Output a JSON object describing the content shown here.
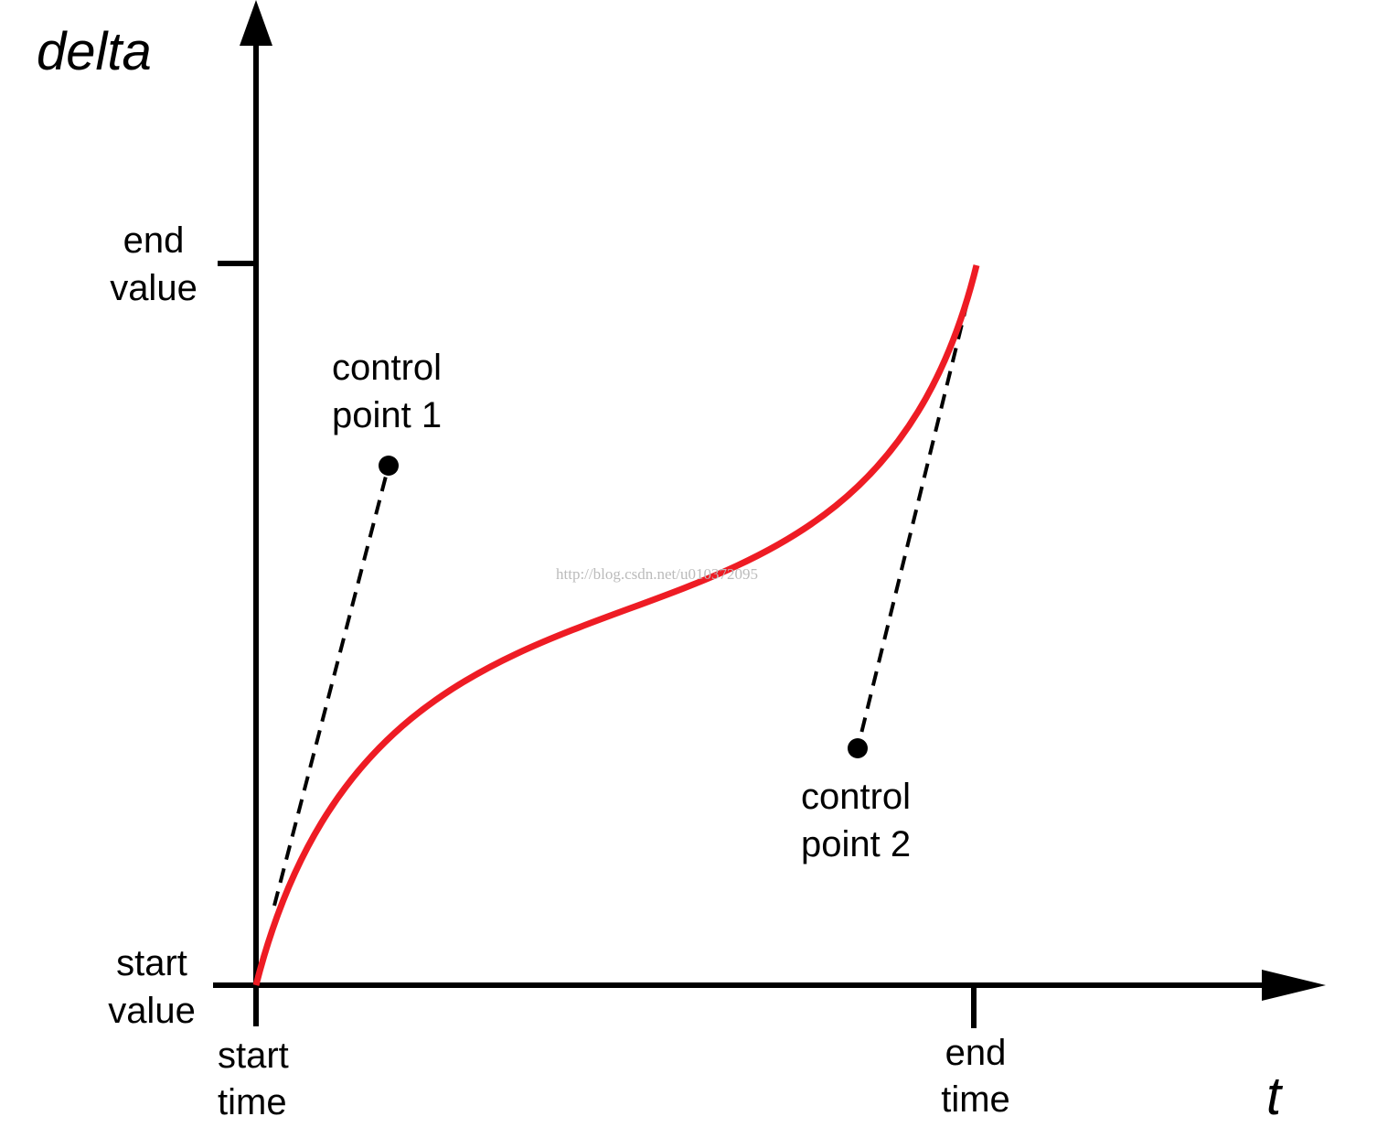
{
  "axes": {
    "y_label": "delta",
    "x_label": "t"
  },
  "labels": {
    "end_value": [
      "end",
      "value"
    ],
    "start_value": [
      "start",
      "value"
    ],
    "start_time": [
      "start",
      "time"
    ],
    "end_time": [
      "end",
      "time"
    ],
    "control_point_1": [
      "control",
      "point 1"
    ],
    "control_point_2": [
      "control",
      "point 2"
    ]
  },
  "watermark": "http://blog.csdn.net/u010372095"
}
